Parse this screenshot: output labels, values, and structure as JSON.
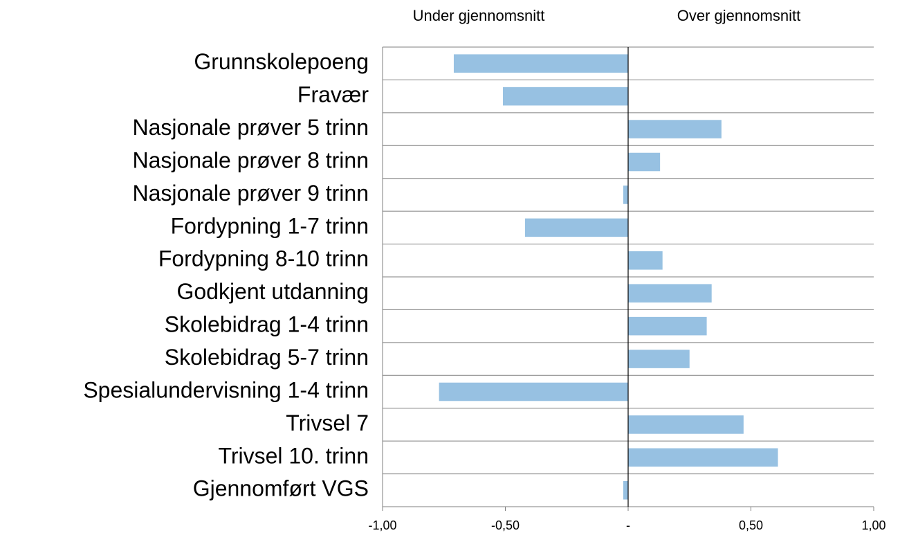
{
  "chart_data": {
    "type": "barh",
    "annotations": [
      "Under gjennomsnitt",
      "Over gjennomsnitt"
    ],
    "categories": [
      "Grunnskolepoeng",
      "Fravær",
      "Nasjonale prøver 5 trinn",
      "Nasjonale prøver 8 trinn",
      "Nasjonale prøver 9 trinn",
      "Fordypning 1-7 trinn",
      "Fordypning 8-10 trinn",
      "Godkjent utdanning",
      "Skolebidrag 1-4 trinn",
      "Skolebidrag 5-7 trinn",
      "Spesialundervisning 1-4 trinn",
      "Trivsel 7",
      "Trivsel 10. trinn",
      "Gjennomført VGS"
    ],
    "values": [
      -0.71,
      -0.51,
      0.38,
      0.13,
      -0.02,
      -0.42,
      0.14,
      0.34,
      0.32,
      0.25,
      -0.77,
      0.47,
      0.61,
      -0.02
    ],
    "color": "#97c1e2",
    "xlim": [
      -1,
      1
    ],
    "xticks": [
      {
        "value": -1,
        "label": "-1,00"
      },
      {
        "value": -0.5,
        "label": "-0,50"
      },
      {
        "value": 0,
        "label": "-"
      },
      {
        "value": 0.5,
        "label": "0,50"
      },
      {
        "value": 1,
        "label": "1,00"
      }
    ]
  }
}
